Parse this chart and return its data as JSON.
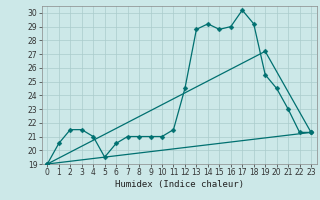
{
  "title": "",
  "xlabel": "Humidex (Indice chaleur)",
  "bg_color": "#cce8e8",
  "line_color": "#007070",
  "grid_color": "#aacccc",
  "xlim": [
    -0.5,
    23.5
  ],
  "ylim": [
    19,
    30.5
  ],
  "xticks": [
    0,
    1,
    2,
    3,
    4,
    5,
    6,
    7,
    8,
    9,
    10,
    11,
    12,
    13,
    14,
    15,
    16,
    17,
    18,
    19,
    20,
    21,
    22,
    23
  ],
  "yticks": [
    19,
    20,
    21,
    22,
    23,
    24,
    25,
    26,
    27,
    28,
    29,
    30
  ],
  "curve1_x": [
    0,
    1,
    2,
    3,
    4,
    5,
    6,
    7,
    8,
    9,
    10,
    11,
    12,
    13,
    14,
    15,
    16,
    17,
    18,
    19,
    20,
    21,
    22,
    23
  ],
  "curve1_y": [
    19.0,
    20.5,
    21.5,
    21.5,
    21.0,
    19.5,
    20.5,
    21.0,
    21.0,
    21.0,
    21.0,
    21.5,
    24.5,
    28.8,
    29.2,
    28.8,
    29.0,
    30.2,
    29.2,
    25.5,
    24.5,
    23.0,
    21.3,
    21.3
  ],
  "curve2_x": [
    0,
    19,
    23
  ],
  "curve2_y": [
    19.0,
    27.2,
    21.3
  ],
  "curve3_x": [
    0,
    23
  ],
  "curve3_y": [
    19.0,
    21.3
  ],
  "markersize": 2.5,
  "linewidth": 0.9,
  "tick_fontsize": 5.5,
  "xlabel_fontsize": 6.5
}
